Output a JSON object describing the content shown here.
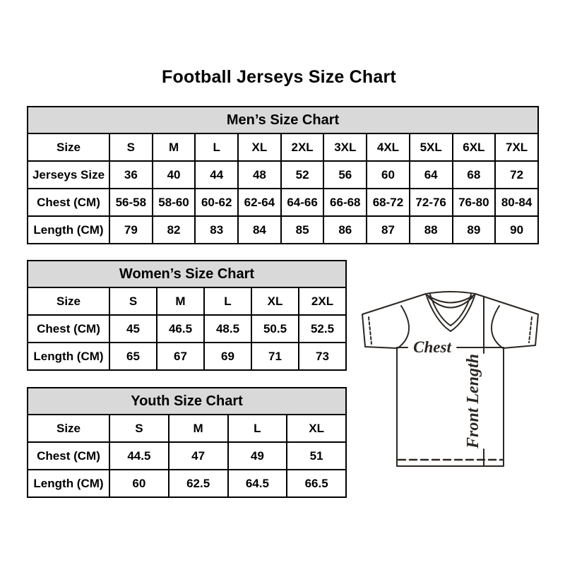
{
  "title": "Football Jerseys Size Chart",
  "tables": {
    "mens": {
      "header": "Men’s Size Chart",
      "rows": [
        [
          "Size",
          "S",
          "M",
          "L",
          "XL",
          "2XL",
          "3XL",
          "4XL",
          "5XL",
          "6XL",
          "7XL"
        ],
        [
          "Jerseys Size",
          "36",
          "40",
          "44",
          "48",
          "52",
          "56",
          "60",
          "64",
          "68",
          "72"
        ],
        [
          "Chest (CM)",
          "56-58",
          "58-60",
          "60-62",
          "62-64",
          "64-66",
          "66-68",
          "68-72",
          "72-76",
          "76-80",
          "80-84"
        ],
        [
          "Length (CM)",
          "79",
          "82",
          "83",
          "84",
          "85",
          "86",
          "87",
          "88",
          "89",
          "90"
        ]
      ]
    },
    "womens": {
      "header": "Women’s Size Chart",
      "rows": [
        [
          "Size",
          "S",
          "M",
          "L",
          "XL",
          "2XL"
        ],
        [
          "Chest (CM)",
          "45",
          "46.5",
          "48.5",
          "50.5",
          "52.5"
        ],
        [
          "Length (CM)",
          "65",
          "67",
          "69",
          "71",
          "73"
        ]
      ]
    },
    "youth": {
      "header": "Youth Size Chart",
      "rows": [
        [
          "Size",
          "S",
          "M",
          "L",
          "XL"
        ],
        [
          "Chest (CM)",
          "44.5",
          "47",
          "49",
          "51"
        ],
        [
          "Length (CM)",
          "60",
          "62.5",
          "64.5",
          "66.5"
        ]
      ]
    }
  },
  "diagram": {
    "chest_label": "Chest",
    "front_length_label": "Front Length"
  },
  "colors": {
    "header_bg": "#d9d9d9",
    "table_border": "#000000",
    "diagram_line": "#2b2622",
    "text": "#000000",
    "background": "#ffffff"
  },
  "chart_data": [
    {
      "type": "table",
      "title": "Men’s Size Chart",
      "columns": [
        "Size",
        "S",
        "M",
        "L",
        "XL",
        "2XL",
        "3XL",
        "4XL",
        "5XL",
        "6XL",
        "7XL"
      ],
      "rows": [
        [
          "Jerseys Size",
          36,
          40,
          44,
          48,
          52,
          56,
          60,
          64,
          68,
          72
        ],
        [
          "Chest (CM)",
          "56-58",
          "58-60",
          "60-62",
          "62-64",
          "64-66",
          "66-68",
          "68-72",
          "72-76",
          "76-80",
          "80-84"
        ],
        [
          "Length (CM)",
          79,
          82,
          83,
          84,
          85,
          86,
          87,
          88,
          89,
          90
        ]
      ]
    },
    {
      "type": "table",
      "title": "Women’s Size Chart",
      "columns": [
        "Size",
        "S",
        "M",
        "L",
        "XL",
        "2XL"
      ],
      "rows": [
        [
          "Chest (CM)",
          45,
          46.5,
          48.5,
          50.5,
          52.5
        ],
        [
          "Length (CM)",
          65,
          67,
          69,
          71,
          73
        ]
      ]
    },
    {
      "type": "table",
      "title": "Youth Size Chart",
      "columns": [
        "Size",
        "S",
        "M",
        "L",
        "XL"
      ],
      "rows": [
        [
          "Chest (CM)",
          44.5,
          47,
          49,
          51
        ],
        [
          "Length (CM)",
          60,
          62.5,
          64.5,
          66.5
        ]
      ]
    }
  ]
}
